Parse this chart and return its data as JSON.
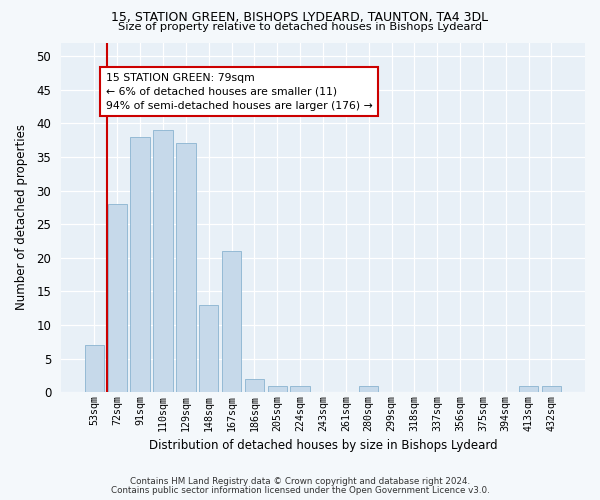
{
  "title1": "15, STATION GREEN, BISHOPS LYDEARD, TAUNTON, TA4 3DL",
  "title2": "Size of property relative to detached houses in Bishops Lydeard",
  "xlabel": "Distribution of detached houses by size in Bishops Lydeard",
  "ylabel": "Number of detached properties",
  "categories": [
    "53sqm",
    "72sqm",
    "91sqm",
    "110sqm",
    "129sqm",
    "148sqm",
    "167sqm",
    "186sqm",
    "205sqm",
    "224sqm",
    "243sqm",
    "261sqm",
    "280sqm",
    "299sqm",
    "318sqm",
    "337sqm",
    "356sqm",
    "375sqm",
    "394sqm",
    "413sqm",
    "432sqm"
  ],
  "values": [
    7,
    28,
    38,
    39,
    37,
    13,
    21,
    2,
    1,
    1,
    0,
    0,
    1,
    0,
    0,
    0,
    0,
    0,
    0,
    1,
    1
  ],
  "bar_color": "#c6d9ea",
  "bar_edgecolor": "#8ab4d0",
  "ylim": [
    0,
    52
  ],
  "yticks": [
    0,
    5,
    10,
    15,
    20,
    25,
    30,
    35,
    40,
    45,
    50
  ],
  "annotation_text": "15 STATION GREEN: 79sqm\n← 6% of detached houses are smaller (11)\n94% of semi-detached houses are larger (176) →",
  "annotation_box_color": "#ffffff",
  "annotation_box_edgecolor": "#cc0000",
  "vline_color": "#cc0000",
  "vline_x_index": 1,
  "footer1": "Contains HM Land Registry data © Crown copyright and database right 2024.",
  "footer2": "Contains public sector information licensed under the Open Government Licence v3.0.",
  "bg_color": "#f4f8fb",
  "plot_bg_color": "#e8f0f7"
}
